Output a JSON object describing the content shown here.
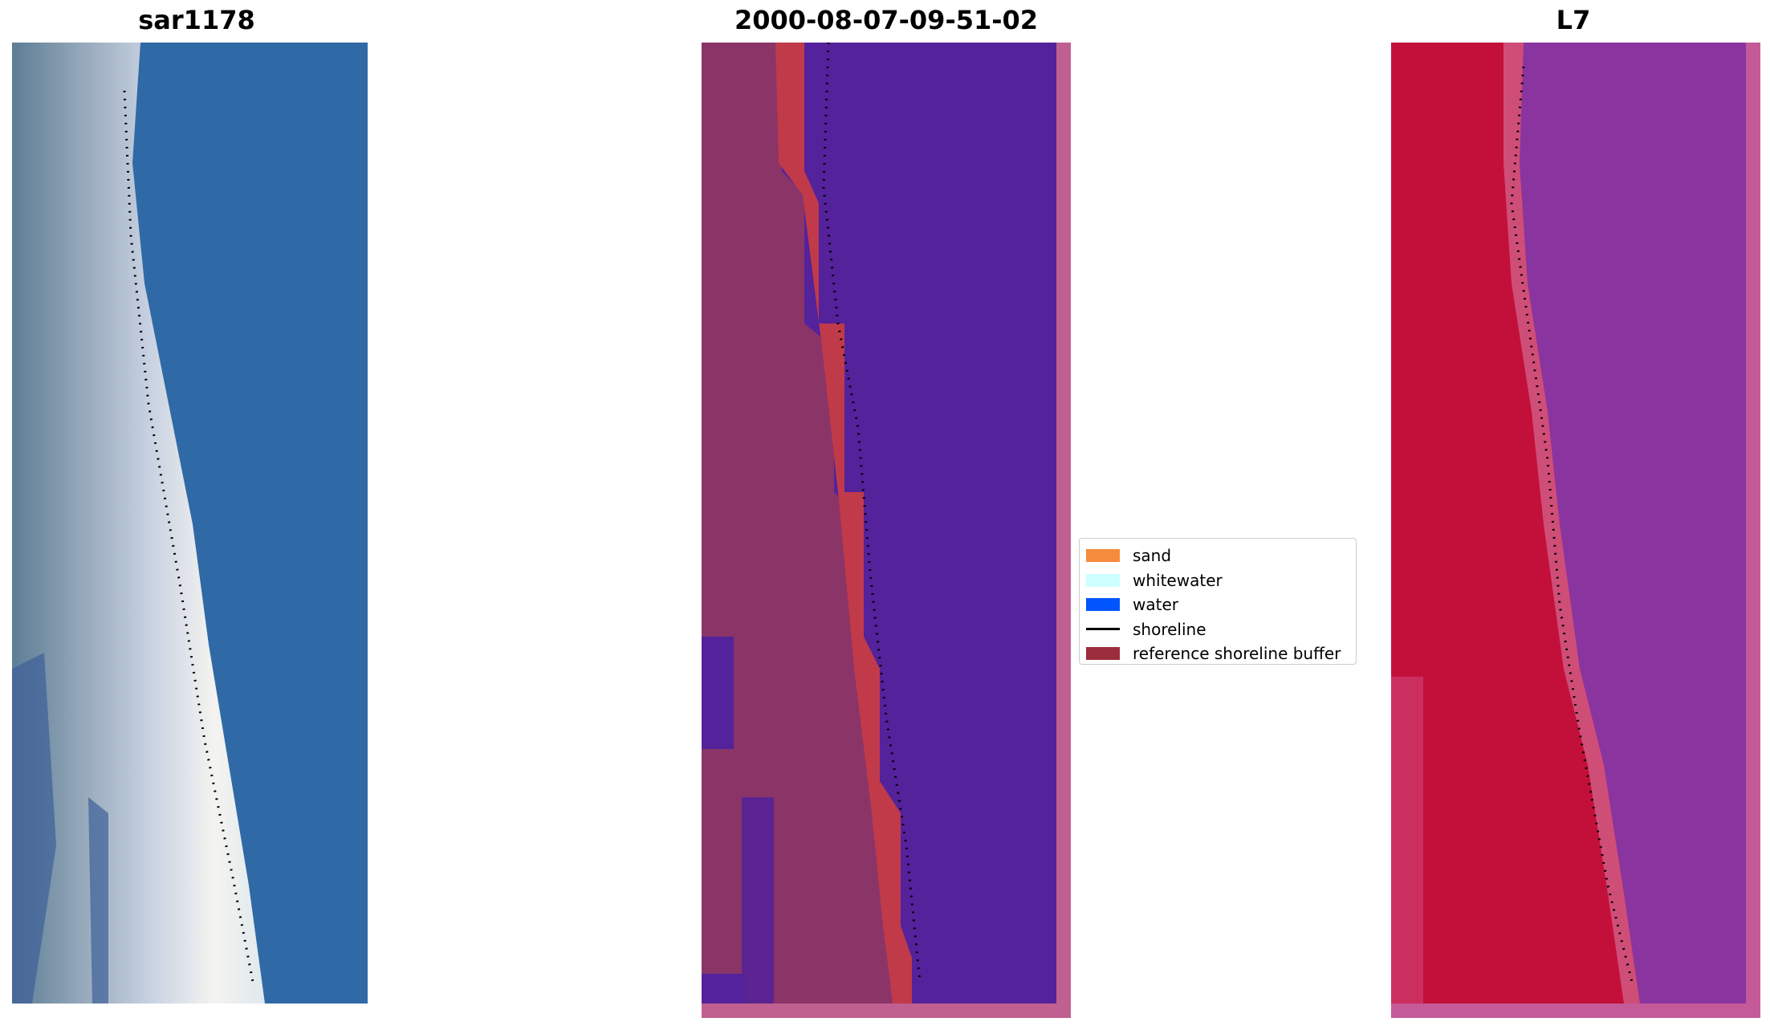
{
  "panels": [
    {
      "title": "sar1178",
      "kind": "rgb-image"
    },
    {
      "title": "2000-08-07-09-51-02",
      "kind": "classified-image"
    },
    {
      "title": "L7",
      "kind": "mndwi-image"
    }
  ],
  "legend": {
    "items": [
      {
        "label": "sand",
        "color": "#f58b3c",
        "type": "patch"
      },
      {
        "label": "whitewater",
        "color": "#ccffff",
        "type": "patch"
      },
      {
        "label": "water",
        "color": "#0055ff",
        "type": "patch"
      },
      {
        "label": "shoreline",
        "color": "#000000",
        "type": "line"
      },
      {
        "label": "reference shoreline buffer",
        "color": "#9b2d3c",
        "type": "patch"
      }
    ]
  },
  "colors": {
    "sea_blue": "#2f6aa6",
    "panel2_land": "#8a3468",
    "panel2_buffer": "#c03a4a",
    "panel2_water": "#54229a",
    "panel2_border": "#c06090",
    "panel3_land": "#c3103a",
    "panel3_water": "#8a34a0",
    "panel3_border": "#c45a98"
  }
}
